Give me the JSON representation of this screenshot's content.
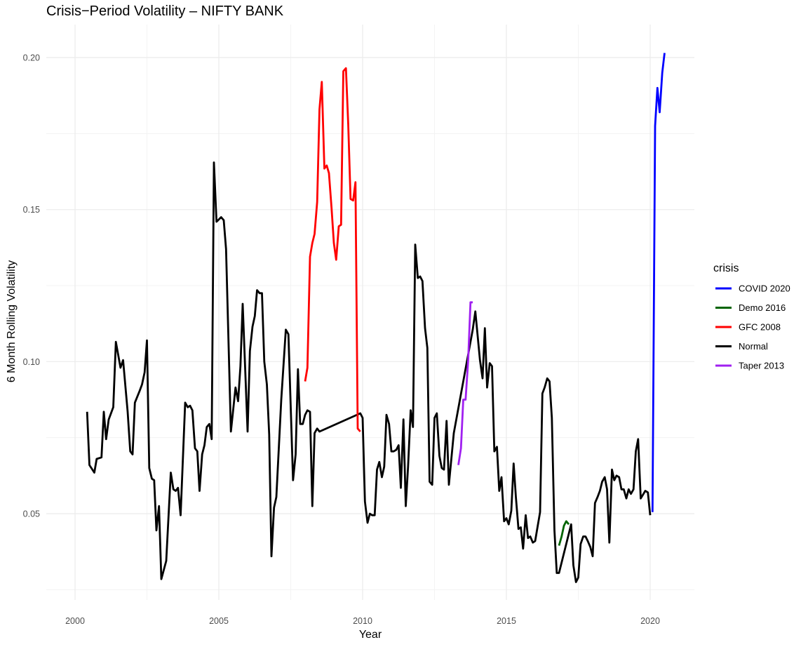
{
  "chart_data": {
    "type": "line",
    "title": "Crisis−Period Volatility – NIFTY BANK",
    "xlabel": "Year",
    "ylabel": "6 Month Rolling Volatility",
    "xlim": [
      1999.6,
      2021.5
    ],
    "ylim": [
      0.024,
      0.21
    ],
    "x_ticks": [
      2000,
      2005,
      2010,
      2015,
      2020
    ],
    "y_ticks": [
      0.05,
      0.1,
      0.15,
      0.2
    ],
    "grid": true,
    "legend": {
      "title": "crisis",
      "position": "right",
      "entries": [
        "COVID 2020",
        "Demo 2016",
        "GFC 2008",
        "Normal",
        "Taper 2013"
      ]
    },
    "series": [
      {
        "name": "Normal",
        "color": "#000000",
        "points": [
          [
            2000.42,
            0.0835
          ],
          [
            2000.5,
            0.066
          ],
          [
            2000.67,
            0.0635
          ],
          [
            2000.75,
            0.068
          ],
          [
            2000.92,
            0.0685
          ],
          [
            2001.0,
            0.0835
          ],
          [
            2001.08,
            0.0745
          ],
          [
            2001.17,
            0.081
          ],
          [
            2001.33,
            0.085
          ],
          [
            2001.42,
            0.1065
          ],
          [
            2001.58,
            0.098
          ],
          [
            2001.67,
            0.1005
          ],
          [
            2001.83,
            0.0835
          ],
          [
            2001.92,
            0.0705
          ],
          [
            2002.0,
            0.0695
          ],
          [
            2002.08,
            0.0865
          ],
          [
            2002.25,
            0.0905
          ],
          [
            2002.33,
            0.0925
          ],
          [
            2002.42,
            0.0965
          ],
          [
            2002.5,
            0.107
          ],
          [
            2002.58,
            0.065
          ],
          [
            2002.67,
            0.0615
          ],
          [
            2002.75,
            0.061
          ],
          [
            2002.83,
            0.0445
          ],
          [
            2002.92,
            0.0525
          ],
          [
            2003.0,
            0.0285
          ],
          [
            2003.17,
            0.0345
          ],
          [
            2003.33,
            0.0635
          ],
          [
            2003.42,
            0.058
          ],
          [
            2003.5,
            0.0575
          ],
          [
            2003.58,
            0.0585
          ],
          [
            2003.67,
            0.0495
          ],
          [
            2003.83,
            0.0865
          ],
          [
            2003.92,
            0.085
          ],
          [
            2004.0,
            0.0855
          ],
          [
            2004.08,
            0.084
          ],
          [
            2004.17,
            0.0715
          ],
          [
            2004.25,
            0.0705
          ],
          [
            2004.33,
            0.0575
          ],
          [
            2004.42,
            0.0695
          ],
          [
            2004.5,
            0.0725
          ],
          [
            2004.58,
            0.0785
          ],
          [
            2004.67,
            0.0795
          ],
          [
            2004.75,
            0.0745
          ],
          [
            2004.83,
            0.1655
          ],
          [
            2004.92,
            0.146
          ],
          [
            2005.08,
            0.1475
          ],
          [
            2005.17,
            0.1465
          ],
          [
            2005.25,
            0.137
          ],
          [
            2005.42,
            0.077
          ],
          [
            2005.58,
            0.0915
          ],
          [
            2005.67,
            0.087
          ],
          [
            2005.75,
            0.0985
          ],
          [
            2005.83,
            0.119
          ],
          [
            2006.0,
            0.077
          ],
          [
            2006.08,
            0.1035
          ],
          [
            2006.17,
            0.1115
          ],
          [
            2006.25,
            0.115
          ],
          [
            2006.33,
            0.1235
          ],
          [
            2006.42,
            0.1225
          ],
          [
            2006.5,
            0.1225
          ],
          [
            2006.58,
            0.1
          ],
          [
            2006.67,
            0.0925
          ],
          [
            2006.75,
            0.076
          ],
          [
            2006.83,
            0.036
          ],
          [
            2006.92,
            0.052
          ],
          [
            2007.0,
            0.0555
          ],
          [
            2007.17,
            0.0875
          ],
          [
            2007.33,
            0.1105
          ],
          [
            2007.42,
            0.109
          ],
          [
            2007.58,
            0.061
          ],
          [
            2007.67,
            0.0695
          ],
          [
            2007.75,
            0.0975
          ],
          [
            2007.83,
            0.0795
          ],
          [
            2007.92,
            0.0795
          ],
          [
            2008.0,
            0.0825
          ],
          [
            2008.08,
            0.084
          ],
          [
            2008.17,
            0.0835
          ],
          [
            2008.25,
            0.0525
          ],
          [
            2008.33,
            0.0765
          ],
          [
            2008.42,
            0.078
          ],
          [
            2008.5,
            0.077
          ],
          [
            2009.92,
            0.083
          ],
          [
            2010.0,
            0.0815
          ],
          [
            2010.08,
            0.054
          ],
          [
            2010.17,
            0.047
          ],
          [
            2010.25,
            0.05
          ],
          [
            2010.33,
            0.0495
          ],
          [
            2010.42,
            0.0495
          ],
          [
            2010.5,
            0.0645
          ],
          [
            2010.58,
            0.067
          ],
          [
            2010.67,
            0.062
          ],
          [
            2010.75,
            0.0655
          ],
          [
            2010.83,
            0.0825
          ],
          [
            2010.92,
            0.0795
          ],
          [
            2011.0,
            0.0705
          ],
          [
            2011.08,
            0.0705
          ],
          [
            2011.17,
            0.071
          ],
          [
            2011.25,
            0.0725
          ],
          [
            2011.33,
            0.0585
          ],
          [
            2011.42,
            0.081
          ],
          [
            2011.5,
            0.0525
          ],
          [
            2011.58,
            0.0655
          ],
          [
            2011.67,
            0.084
          ],
          [
            2011.75,
            0.0785
          ],
          [
            2011.83,
            0.1385
          ],
          [
            2011.92,
            0.1275
          ],
          [
            2012.0,
            0.128
          ],
          [
            2012.08,
            0.1265
          ],
          [
            2012.17,
            0.111
          ],
          [
            2012.25,
            0.1045
          ],
          [
            2012.33,
            0.0605
          ],
          [
            2012.42,
            0.0595
          ],
          [
            2012.5,
            0.0815
          ],
          [
            2012.58,
            0.083
          ],
          [
            2012.67,
            0.069
          ],
          [
            2012.75,
            0.065
          ],
          [
            2012.83,
            0.0645
          ],
          [
            2012.92,
            0.0805
          ],
          [
            2013.0,
            0.0595
          ],
          [
            2013.17,
            0.0765
          ],
          [
            2013.83,
            0.1105
          ],
          [
            2013.92,
            0.1165
          ],
          [
            2014.08,
            0.1005
          ],
          [
            2014.17,
            0.0945
          ],
          [
            2014.25,
            0.111
          ],
          [
            2014.33,
            0.0915
          ],
          [
            2014.42,
            0.0995
          ],
          [
            2014.5,
            0.0985
          ],
          [
            2014.58,
            0.0705
          ],
          [
            2014.67,
            0.072
          ],
          [
            2014.75,
            0.0575
          ],
          [
            2014.83,
            0.062
          ],
          [
            2014.92,
            0.0475
          ],
          [
            2015.0,
            0.0485
          ],
          [
            2015.08,
            0.0465
          ],
          [
            2015.17,
            0.051
          ],
          [
            2015.25,
            0.0665
          ],
          [
            2015.33,
            0.0555
          ],
          [
            2015.42,
            0.045
          ],
          [
            2015.5,
            0.0455
          ],
          [
            2015.58,
            0.0385
          ],
          [
            2015.67,
            0.0495
          ],
          [
            2015.75,
            0.042
          ],
          [
            2015.83,
            0.0425
          ],
          [
            2015.92,
            0.0405
          ],
          [
            2016.0,
            0.041
          ],
          [
            2016.08,
            0.0455
          ],
          [
            2016.17,
            0.0505
          ],
          [
            2016.25,
            0.0895
          ],
          [
            2016.33,
            0.0915
          ],
          [
            2016.42,
            0.0945
          ],
          [
            2016.5,
            0.0935
          ],
          [
            2016.58,
            0.0815
          ],
          [
            2016.67,
            0.0445
          ],
          [
            2016.75,
            0.0305
          ],
          [
            2016.83,
            0.0305
          ],
          [
            2017.25,
            0.0465
          ],
          [
            2017.33,
            0.033
          ],
          [
            2017.42,
            0.0275
          ],
          [
            2017.5,
            0.029
          ],
          [
            2017.58,
            0.04
          ],
          [
            2017.67,
            0.0425
          ],
          [
            2017.75,
            0.0425
          ],
          [
            2017.83,
            0.041
          ],
          [
            2017.92,
            0.039
          ],
          [
            2018.0,
            0.036
          ],
          [
            2018.08,
            0.0535
          ],
          [
            2018.17,
            0.0555
          ],
          [
            2018.25,
            0.0575
          ],
          [
            2018.33,
            0.0605
          ],
          [
            2018.42,
            0.062
          ],
          [
            2018.5,
            0.058
          ],
          [
            2018.58,
            0.0405
          ],
          [
            2018.67,
            0.0645
          ],
          [
            2018.75,
            0.061
          ],
          [
            2018.83,
            0.0625
          ],
          [
            2018.92,
            0.062
          ],
          [
            2019.0,
            0.058
          ],
          [
            2019.08,
            0.058
          ],
          [
            2019.17,
            0.055
          ],
          [
            2019.25,
            0.058
          ],
          [
            2019.33,
            0.0565
          ],
          [
            2019.42,
            0.058
          ],
          [
            2019.5,
            0.0705
          ],
          [
            2019.58,
            0.0745
          ],
          [
            2019.67,
            0.055
          ],
          [
            2019.83,
            0.0575
          ],
          [
            2019.92,
            0.057
          ],
          [
            2020.0,
            0.0495
          ]
        ]
      },
      {
        "name": "GFC 2008",
        "color": "#ff0000",
        "points": [
          [
            2008.0,
            0.0935
          ],
          [
            2008.08,
            0.098
          ],
          [
            2008.17,
            0.1345
          ],
          [
            2008.25,
            0.139
          ],
          [
            2008.33,
            0.142
          ],
          [
            2008.42,
            0.1525
          ],
          [
            2008.5,
            0.183
          ],
          [
            2008.58,
            0.192
          ],
          [
            2008.67,
            0.1635
          ],
          [
            2008.75,
            0.1645
          ],
          [
            2008.83,
            0.162
          ],
          [
            2008.92,
            0.1505
          ],
          [
            2009.0,
            0.139
          ],
          [
            2009.08,
            0.1335
          ],
          [
            2009.17,
            0.1445
          ],
          [
            2009.25,
            0.145
          ],
          [
            2009.33,
            0.1955
          ],
          [
            2009.42,
            0.1965
          ],
          [
            2009.5,
            0.178
          ],
          [
            2009.58,
            0.1535
          ],
          [
            2009.67,
            0.153
          ],
          [
            2009.75,
            0.159
          ],
          [
            2009.83,
            0.078
          ],
          [
            2009.92,
            0.077
          ]
        ]
      },
      {
        "name": "Taper 2013",
        "color": "#a020f0",
        "points": [
          [
            2013.33,
            0.066
          ],
          [
            2013.42,
            0.0715
          ],
          [
            2013.5,
            0.0875
          ],
          [
            2013.58,
            0.0875
          ],
          [
            2013.67,
            0.1005
          ],
          [
            2013.75,
            0.1195
          ],
          [
            2013.83,
            0.1195
          ]
        ]
      },
      {
        "name": "Demo 2016",
        "color": "#006400",
        "points": [
          [
            2016.83,
            0.0395
          ],
          [
            2016.92,
            0.0425
          ],
          [
            2017.0,
            0.046
          ],
          [
            2017.08,
            0.0475
          ],
          [
            2017.17,
            0.0465
          ]
        ]
      },
      {
        "name": "COVID 2020",
        "color": "#0000ff",
        "points": [
          [
            2020.08,
            0.0505
          ],
          [
            2020.17,
            0.1775
          ],
          [
            2020.25,
            0.19
          ],
          [
            2020.33,
            0.182
          ],
          [
            2020.42,
            0.195
          ],
          [
            2020.5,
            0.2015
          ]
        ]
      }
    ]
  }
}
